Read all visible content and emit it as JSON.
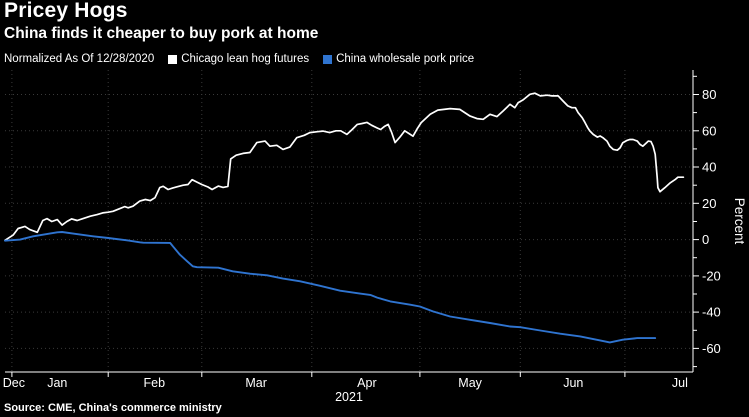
{
  "header": {
    "title": "Pricey Hogs",
    "subtitle": "China finds it cheaper to buy pork at home"
  },
  "legend": {
    "note": "Normalized As Of 12/28/2020",
    "items": [
      {
        "id": "hog-futures",
        "label": "Chicago lean hog futures",
        "color": "#ffffff"
      },
      {
        "id": "pork-price",
        "label": "China wholesale pork price",
        "color": "#2f74d0"
      }
    ]
  },
  "source": "Source: CME, China's commerce ministry",
  "colors": {
    "background": "#000000",
    "text": "#ffffff",
    "grid": "#3a3a3a",
    "axis": "#ffffff",
    "accent_blue": "#2f74d0"
  },
  "chart_data": {
    "type": "line",
    "title": "Pricey Hogs",
    "subtitle": "China finds it cheaper to buy pork at home",
    "note": "Normalized As Of 12/28/2020",
    "ylabel": "Percent",
    "xlabel": "",
    "ylim": [
      -73,
      93.5
    ],
    "y_major_ticks": [
      80,
      60,
      40,
      20,
      0,
      -20,
      -40,
      -60
    ],
    "y_minor_ticks": [
      90,
      70,
      50,
      30,
      10,
      -10,
      -30,
      -50,
      -70
    ],
    "grid": "dotted",
    "legend_position": "top",
    "x_axis": {
      "year_label": "2021",
      "note": "x values of points are fractions of the axis span Dec 28 2020 - Jul 21 2021",
      "months": [
        {
          "label": "Dec",
          "grid": null,
          "label_x": 0.013
        },
        {
          "label": "Jan",
          "grid": 0.01,
          "label_x": 0.076
        },
        {
          "label": "Feb",
          "grid": 0.15,
          "label_x": 0.217
        },
        {
          "label": "Mar",
          "grid": 0.286,
          "label_x": 0.365
        },
        {
          "label": "Apr",
          "grid": 0.446,
          "label_x": 0.526
        },
        {
          "label": "May",
          "grid": 0.603,
          "label_x": 0.676
        },
        {
          "label": "Jun",
          "grid": 0.749,
          "label_x": 0.826
        },
        {
          "label": "Jul",
          "grid": 0.901,
          "label_x": 0.981
        }
      ]
    },
    "series": [
      {
        "id": "hog-futures",
        "name": "Chicago lean hog futures",
        "color": "#ffffff",
        "width": 1.7,
        "unit": "%",
        "points": [
          [
            0.0,
            -0.4
          ],
          [
            0.012,
            2.6
          ],
          [
            0.019,
            6.1
          ],
          [
            0.029,
            7.3
          ],
          [
            0.036,
            5.5
          ],
          [
            0.047,
            4.0
          ],
          [
            0.055,
            10.5
          ],
          [
            0.061,
            11.6
          ],
          [
            0.068,
            10.0
          ],
          [
            0.076,
            11.0
          ],
          [
            0.083,
            8.0
          ],
          [
            0.09,
            10.0
          ],
          [
            0.097,
            11.4
          ],
          [
            0.105,
            10.5
          ],
          [
            0.113,
            11.5
          ],
          [
            0.124,
            12.9
          ],
          [
            0.134,
            13.8
          ],
          [
            0.142,
            14.7
          ],
          [
            0.15,
            15.1
          ],
          [
            0.157,
            15.6
          ],
          [
            0.167,
            17.1
          ],
          [
            0.174,
            18.2
          ],
          [
            0.179,
            17.5
          ],
          [
            0.186,
            18.4
          ],
          [
            0.196,
            21.2
          ],
          [
            0.204,
            22.1
          ],
          [
            0.211,
            21.5
          ],
          [
            0.218,
            23.1
          ],
          [
            0.225,
            28.7
          ],
          [
            0.23,
            29.4
          ],
          [
            0.237,
            27.6
          ],
          [
            0.244,
            28.5
          ],
          [
            0.252,
            29.3
          ],
          [
            0.259,
            30.0
          ],
          [
            0.266,
            30.4
          ],
          [
            0.272,
            33.0
          ],
          [
            0.279,
            31.7
          ],
          [
            0.286,
            30.4
          ],
          [
            0.295,
            29.0
          ],
          [
            0.301,
            27.6
          ],
          [
            0.31,
            29.5
          ],
          [
            0.317,
            28.8
          ],
          [
            0.324,
            29.3
          ],
          [
            0.328,
            44.5
          ],
          [
            0.336,
            46.5
          ],
          [
            0.346,
            47.5
          ],
          [
            0.356,
            48.0
          ],
          [
            0.366,
            53.5
          ],
          [
            0.378,
            54.3
          ],
          [
            0.385,
            51.5
          ],
          [
            0.395,
            52.0
          ],
          [
            0.404,
            49.7
          ],
          [
            0.414,
            51.0
          ],
          [
            0.424,
            56.2
          ],
          [
            0.435,
            57.5
          ],
          [
            0.443,
            59.0
          ],
          [
            0.454,
            59.5
          ],
          [
            0.462,
            59.8
          ],
          [
            0.472,
            59.0
          ],
          [
            0.481,
            60.0
          ],
          [
            0.488,
            60.0
          ],
          [
            0.497,
            58.0
          ],
          [
            0.504,
            60.5
          ],
          [
            0.512,
            63.5
          ],
          [
            0.519,
            64.0
          ],
          [
            0.526,
            64.6
          ],
          [
            0.533,
            63.0
          ],
          [
            0.541,
            61.5
          ],
          [
            0.546,
            60.7
          ],
          [
            0.552,
            62.5
          ],
          [
            0.557,
            63.5
          ],
          [
            0.562,
            59.0
          ],
          [
            0.567,
            53.5
          ],
          [
            0.574,
            56.5
          ],
          [
            0.581,
            60.0
          ],
          [
            0.587,
            58.5
          ],
          [
            0.593,
            57.0
          ],
          [
            0.599,
            61.0
          ],
          [
            0.605,
            64.5
          ],
          [
            0.618,
            69.1
          ],
          [
            0.629,
            71.4
          ],
          [
            0.647,
            72.2
          ],
          [
            0.661,
            71.8
          ],
          [
            0.676,
            68.1
          ],
          [
            0.686,
            66.7
          ],
          [
            0.695,
            66.3
          ],
          [
            0.705,
            69.1
          ],
          [
            0.715,
            67.8
          ],
          [
            0.724,
            70.9
          ],
          [
            0.734,
            74.6
          ],
          [
            0.741,
            72.7
          ],
          [
            0.746,
            75.5
          ],
          [
            0.753,
            77.0
          ],
          [
            0.763,
            80.1
          ],
          [
            0.77,
            80.7
          ],
          [
            0.778,
            79.2
          ],
          [
            0.788,
            79.6
          ],
          [
            0.795,
            79.2
          ],
          [
            0.804,
            79.2
          ],
          [
            0.811,
            76.4
          ],
          [
            0.818,
            73.7
          ],
          [
            0.824,
            72.7
          ],
          [
            0.829,
            72.7
          ],
          [
            0.833,
            70.0
          ],
          [
            0.839,
            67.2
          ],
          [
            0.843,
            64.5
          ],
          [
            0.847,
            61.7
          ],
          [
            0.85,
            59.9
          ],
          [
            0.855,
            58.0
          ],
          [
            0.861,
            56.5
          ],
          [
            0.865,
            57.1
          ],
          [
            0.869,
            56.2
          ],
          [
            0.875,
            54.3
          ],
          [
            0.879,
            51.5
          ],
          [
            0.884,
            49.7
          ],
          [
            0.89,
            49.3
          ],
          [
            0.894,
            50.6
          ],
          [
            0.898,
            53.4
          ],
          [
            0.904,
            54.7
          ],
          [
            0.908,
            55.2
          ],
          [
            0.913,
            55.2
          ],
          [
            0.919,
            54.3
          ],
          [
            0.923,
            52.5
          ],
          [
            0.927,
            51.5
          ],
          [
            0.93,
            52.5
          ],
          [
            0.935,
            54.3
          ],
          [
            0.939,
            54.0
          ],
          [
            0.942,
            51.5
          ],
          [
            0.945,
            47.0
          ],
          [
            0.948,
            34.1
          ],
          [
            0.949,
            28.6
          ],
          [
            0.952,
            26.4
          ],
          [
            0.959,
            28.6
          ],
          [
            0.967,
            31.3
          ],
          [
            0.974,
            33.1
          ],
          [
            0.978,
            34.4
          ],
          [
            0.986,
            34.4
          ]
        ]
      },
      {
        "id": "pork-price",
        "name": "China wholesale pork price",
        "color": "#2f74d0",
        "width": 1.9,
        "unit": "%",
        "points": [
          [
            0.0,
            -0.6
          ],
          [
            0.022,
            0.0
          ],
          [
            0.041,
            1.8
          ],
          [
            0.065,
            3.3
          ],
          [
            0.076,
            4.0
          ],
          [
            0.083,
            4.2
          ],
          [
            0.099,
            3.3
          ],
          [
            0.128,
            1.8
          ],
          [
            0.15,
            0.9
          ],
          [
            0.177,
            -0.4
          ],
          [
            0.196,
            -1.5
          ],
          [
            0.201,
            -1.7
          ],
          [
            0.24,
            -1.8
          ],
          [
            0.244,
            -3.7
          ],
          [
            0.254,
            -8.3
          ],
          [
            0.265,
            -12.0
          ],
          [
            0.273,
            -14.7
          ],
          [
            0.279,
            -15.2
          ],
          [
            0.31,
            -15.5
          ],
          [
            0.331,
            -17.5
          ],
          [
            0.356,
            -18.8
          ],
          [
            0.381,
            -19.7
          ],
          [
            0.404,
            -21.5
          ],
          [
            0.429,
            -23.0
          ],
          [
            0.458,
            -25.5
          ],
          [
            0.487,
            -28.2
          ],
          [
            0.516,
            -29.8
          ],
          [
            0.531,
            -30.5
          ],
          [
            0.541,
            -32.0
          ],
          [
            0.56,
            -34.1
          ],
          [
            0.589,
            -35.9
          ],
          [
            0.603,
            -36.9
          ],
          [
            0.622,
            -39.6
          ],
          [
            0.647,
            -42.4
          ],
          [
            0.676,
            -44.2
          ],
          [
            0.705,
            -46.0
          ],
          [
            0.734,
            -47.9
          ],
          [
            0.749,
            -48.3
          ],
          [
            0.778,
            -50.1
          ],
          [
            0.807,
            -51.9
          ],
          [
            0.836,
            -53.4
          ],
          [
            0.865,
            -55.6
          ],
          [
            0.879,
            -56.7
          ],
          [
            0.898,
            -55.2
          ],
          [
            0.919,
            -54.3
          ],
          [
            0.945,
            -54.3
          ]
        ]
      }
    ]
  }
}
